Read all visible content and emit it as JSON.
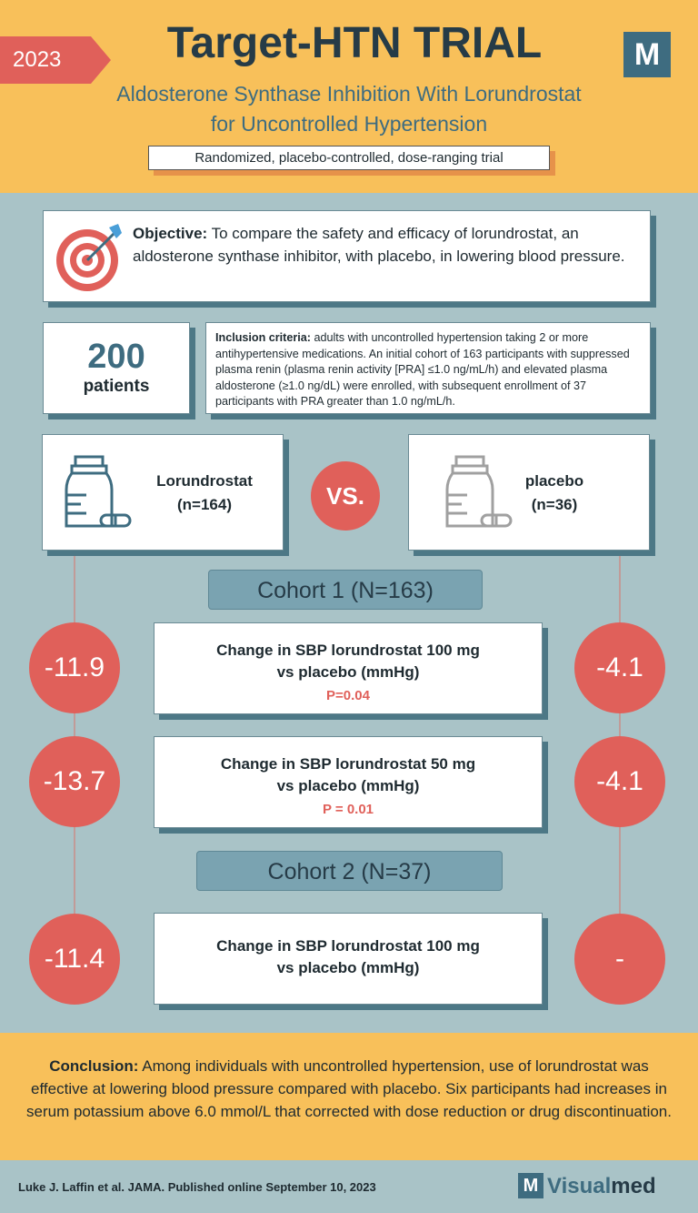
{
  "header": {
    "year": "2023",
    "title": "Target-HTN TRIAL",
    "logo": "M",
    "subtitle_line1": "Aldosterone Synthase Inhibition With Lorundrostat",
    "subtitle_line2": "for Uncontrolled Hypertension",
    "design": "Randomized, placebo-controlled, dose-ranging trial"
  },
  "objective": {
    "label": "Objective:",
    "text": "To compare the safety and efficacy of lorundrostat, an aldosterone synthase inhibitor, with placebo, in lowering blood pressure."
  },
  "patients": {
    "count": "200",
    "label": "patients"
  },
  "inclusion": {
    "label": "Inclusion criteria:",
    "text": "adults with uncontrolled hypertension taking 2 or more antihypertensive medications. An initial cohort of 163 participants with suppressed plasma renin (plasma renin activity [PRA] ≤1.0 ng/mL/h) and elevated plasma aldosterone (≥1.0 ng/dL) were enrolled, with subsequent enrollment of 37 participants with PRA greater than 1.0 ng/mL/h."
  },
  "arms": [
    {
      "name": "Lorundrostat",
      "n": "(n=164)"
    },
    {
      "name": "placebo",
      "n": "(n=36)"
    }
  ],
  "vs": "VS.",
  "cohorts": [
    {
      "label": "Cohort 1 (N=163)",
      "results": [
        {
          "left": "-11.9",
          "title_line1": "Change in SBP lorundrostat 100 mg",
          "title_line2": "vs placebo (mmHg)",
          "p": "P=0.04",
          "right": "-4.1"
        },
        {
          "left": "-13.7",
          "title_line1": "Change in SBP lorundrostat 50 mg",
          "title_line2": "vs placebo (mmHg)",
          "p": "P = 0.01",
          "right": "-4.1"
        }
      ]
    },
    {
      "label": "Cohort 2 (N=37)",
      "results": [
        {
          "left": "-11.4",
          "title_line1": "Change in SBP lorundrostat 100 mg",
          "title_line2": "vs placebo (mmHg)",
          "right": "-"
        }
      ]
    }
  ],
  "conclusion": {
    "label": "Conclusion:",
    "text": "Among individuals with uncontrolled hypertension, use of lorundrostat was effective at lowering blood pressure compared with placebo. Six participants had increases in serum potassium above 6.0 mmol/L that corrected with dose reduction or drug discontinuation."
  },
  "footer": {
    "citation": "Luke J. Laffin et al.  JAMA. Published online September 10, 2023",
    "brand_logo": "M",
    "brand_a": "Visual",
    "brand_b": "med"
  }
}
